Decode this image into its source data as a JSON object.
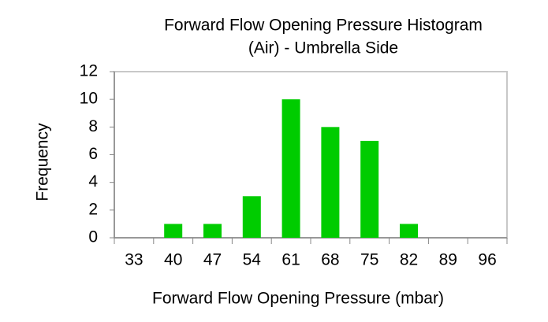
{
  "chart_data": {
    "type": "bar",
    "title": [
      "Forward Flow Opening Pressure Histogram",
      "(Air) - Umbrella Side"
    ],
    "x_label": "Forward Flow Opening Pressure (mbar)",
    "y_label": "Frequency",
    "categories": [
      "33",
      "40",
      "47",
      "54",
      "61",
      "68",
      "75",
      "82",
      "89",
      "96"
    ],
    "values": [
      0,
      1,
      1,
      3,
      10,
      8,
      7,
      1,
      0,
      0
    ],
    "color": "#00cc00",
    "ylim": [
      0,
      12
    ],
    "yticks": [
      0,
      2,
      4,
      6,
      8,
      10,
      12
    ],
    "grid": false
  }
}
